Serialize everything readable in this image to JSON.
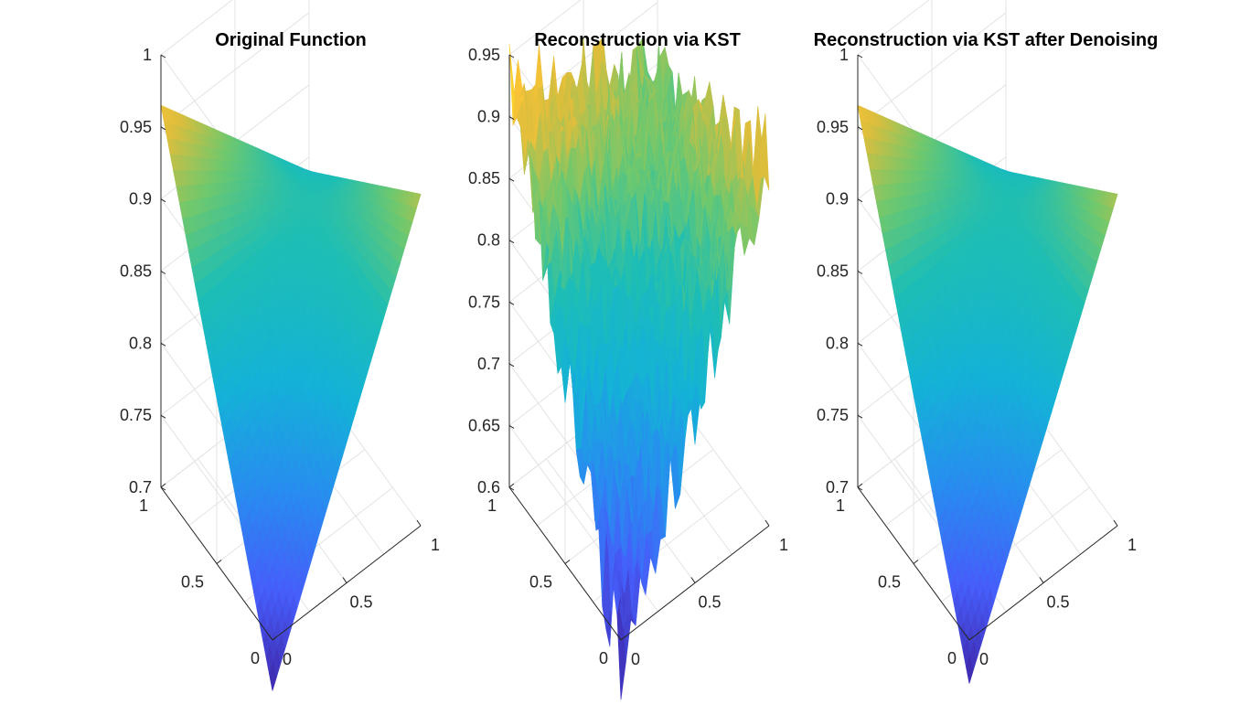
{
  "chart_data": [
    {
      "type": "surface",
      "title": "Original Function",
      "zlim": [
        0.7,
        1
      ],
      "z_ticks": [
        0.7,
        0.75,
        0.8,
        0.85,
        0.9,
        0.95,
        1
      ],
      "x_ticks": [
        0,
        0.5,
        1
      ],
      "y_ticks": [
        0,
        0.5,
        1
      ],
      "surface": {
        "corner_00": 0.665,
        "corner_10": 0.93,
        "corner_01": 0.965,
        "corner_11": 0.84,
        "noise": false,
        "colormap": "parula"
      }
    },
    {
      "type": "surface",
      "title": "Reconstruction via KST",
      "zlim": [
        0.6,
        0.95
      ],
      "z_ticks": [
        0.6,
        0.65,
        0.7,
        0.75,
        0.8,
        0.85,
        0.9,
        0.95
      ],
      "x_ticks": [
        0,
        0.5,
        1
      ],
      "y_ticks": [
        0,
        0.5,
        1
      ],
      "surface": {
        "corner_00": 0.58,
        "corner_10": 0.9,
        "corner_01": 0.93,
        "corner_11": 0.84,
        "noise": true,
        "colormap": "parula"
      }
    },
    {
      "type": "surface",
      "title": "Reconstruction via KST after Denoising",
      "zlim": [
        0.7,
        1
      ],
      "z_ticks": [
        0.7,
        0.75,
        0.8,
        0.85,
        0.9,
        0.95,
        1
      ],
      "x_ticks": [
        0,
        0.5,
        1
      ],
      "y_ticks": [
        0,
        0.5,
        1
      ],
      "surface": {
        "corner_00": 0.67,
        "corner_10": 0.93,
        "corner_01": 0.965,
        "corner_11": 0.84,
        "noise": false,
        "colormap": "parula"
      }
    }
  ]
}
